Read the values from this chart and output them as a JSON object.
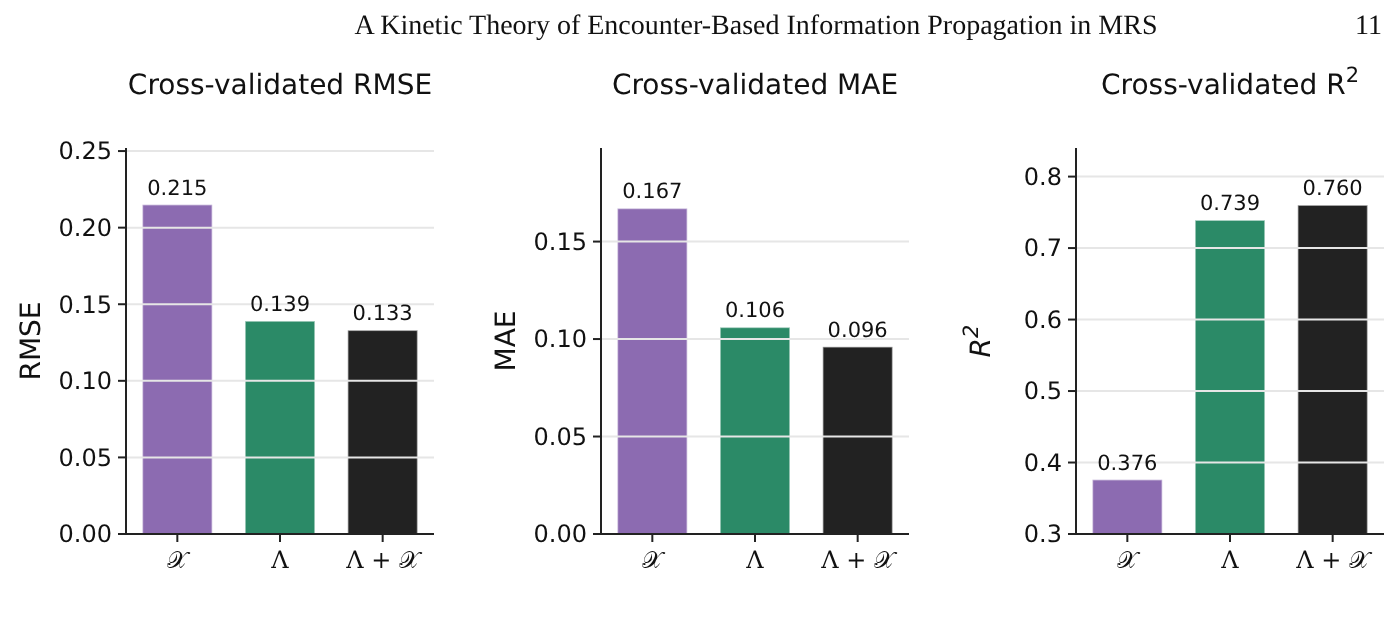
{
  "chart_data": [
    {
      "type": "bar",
      "title": "Cross-validated RMSE",
      "ylabel": "RMSE",
      "categories": [
        "𝒳",
        "Λ",
        "Λ + 𝒳"
      ],
      "values": [
        0.215,
        0.139,
        0.133
      ],
      "value_labels": [
        "0.215",
        "0.139",
        "0.133"
      ],
      "colors": [
        "#8c6bb1",
        "#2b8a67",
        "#222222"
      ],
      "ylim": [
        0,
        0.252
      ],
      "yticks": [
        {
          "value": 0,
          "label": "0.00"
        },
        {
          "value": 0.05,
          "label": "0.05"
        },
        {
          "value": 0.1,
          "label": "0.10"
        },
        {
          "value": 0.15,
          "label": "0.15"
        },
        {
          "value": 0.2,
          "label": "0.20"
        },
        {
          "value": 0.25,
          "label": "0.25"
        }
      ],
      "grid": "y",
      "annotations": [
        "A Kinetic Theory of Encounter-Based Information Propagation in MRS",
        "11"
      ]
    },
    {
      "type": "bar",
      "title": "Cross-validated MAE",
      "ylabel": "MAE",
      "categories": [
        "𝒳",
        "Λ",
        "Λ + 𝒳"
      ],
      "values": [
        0.167,
        0.106,
        0.096
      ],
      "value_labels": [
        "0.167",
        "0.106",
        "0.096"
      ],
      "colors": [
        "#8c6bb1",
        "#2b8a67",
        "#222222"
      ],
      "ylim": [
        0,
        0.198
      ],
      "yticks": [
        {
          "value": 0,
          "label": "0.00"
        },
        {
          "value": 0.05,
          "label": "0.05"
        },
        {
          "value": 0.1,
          "label": "0.10"
        },
        {
          "value": 0.15,
          "label": "0.15"
        }
      ],
      "grid": "y"
    },
    {
      "type": "bar",
      "title": "Cross-validated R$^{2}$",
      "ylabel": "R$^{2}$",
      "categories": [
        "𝒳",
        "Λ",
        "Λ + 𝒳"
      ],
      "values": [
        0.376,
        0.739,
        0.76
      ],
      "value_labels": [
        "0.376",
        "0.739",
        "0.760"
      ],
      "colors": [
        "#8c6bb1",
        "#2b8a67",
        "#222222"
      ],
      "ylim": [
        0.3,
        0.84
      ],
      "yticks": [
        0.3,
        0.4,
        0.5,
        0.6,
        0.7,
        0.8
      ],
      "grid": "y"
    }
  ]
}
